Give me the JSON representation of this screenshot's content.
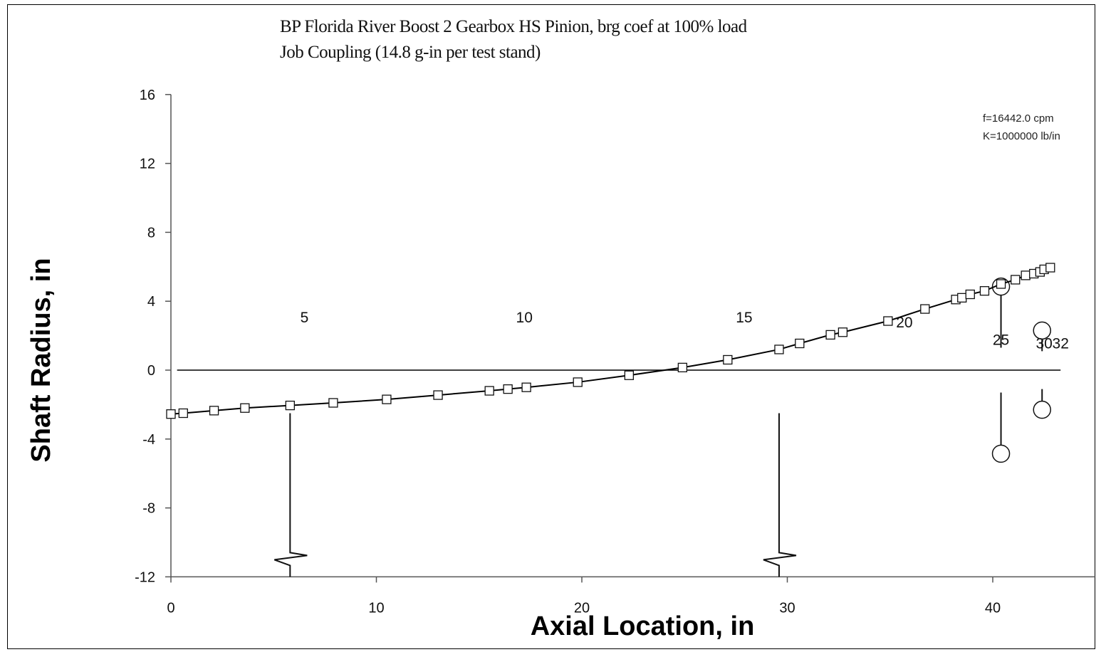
{
  "chart_data": {
    "type": "line",
    "title": "BP Florida River Boost 2 Gearbox HS Pinion, brg coef at 100% load",
    "subtitle": "Job Coupling (14.8 g-in per test stand)",
    "xlabel": "Axial Location, in",
    "ylabel": "Shaft Radius, in",
    "xlim": [
      0,
      45
    ],
    "ylim": [
      -12,
      16
    ],
    "xticks": [
      0,
      10,
      20,
      30,
      40
    ],
    "yticks": [
      16,
      12,
      8,
      4,
      0,
      -4,
      -8,
      -12
    ],
    "annotations": [
      "f=16442.0 cpm",
      "K=1000000 lb/in"
    ],
    "grid": false,
    "series": [
      {
        "marker": "square",
        "x": [
          0.0,
          0.6,
          2.1,
          3.6,
          5.8,
          7.9,
          10.5,
          13.0,
          15.5,
          16.4,
          17.3,
          19.8,
          22.3,
          24.9,
          27.1,
          29.6,
          30.6,
          32.1,
          32.7,
          34.9,
          36.7,
          38.2,
          38.5,
          38.9,
          39.6,
          40.4,
          41.1,
          41.6,
          42.0,
          42.3,
          42.5,
          42.8
        ],
        "y": [
          -2.55,
          -2.5,
          -2.35,
          -2.2,
          -2.05,
          -1.9,
          -1.7,
          -1.45,
          -1.2,
          -1.1,
          -1.0,
          -0.7,
          -0.3,
          0.15,
          0.6,
          1.2,
          1.55,
          2.05,
          2.2,
          2.85,
          3.55,
          4.1,
          4.2,
          4.4,
          4.6,
          5.0,
          5.25,
          5.5,
          5.6,
          5.7,
          5.85,
          5.95
        ]
      }
    ],
    "stations": [
      {
        "label": "5",
        "x": 6.5,
        "y": 3.1
      },
      {
        "label": "10",
        "x": 17.2,
        "y": 3.1
      },
      {
        "label": "15",
        "x": 27.9,
        "y": 3.1
      },
      {
        "label": "20",
        "x": 35.7,
        "y": 2.8
      },
      {
        "label": "25",
        "x": 40.4,
        "y": 1.8
      },
      {
        "label": "30",
        "x": 42.5,
        "y": 1.6
      },
      {
        "label": "32",
        "x": 43.3,
        "y": 1.6
      }
    ],
    "supports": [
      {
        "type": "bearing",
        "x": 5.8,
        "y_top": -2.5,
        "y_bottom": -12
      },
      {
        "type": "bearing",
        "x": 29.6,
        "y_top": -2.5,
        "y_bottom": -12
      }
    ],
    "disks": [
      {
        "x": 40.4,
        "r_outer": 4.85,
        "r_inner": 1.3
      },
      {
        "x": 42.4,
        "r_outer": 2.3,
        "r_inner": 1.1
      }
    ],
    "centerline_y": 0
  }
}
